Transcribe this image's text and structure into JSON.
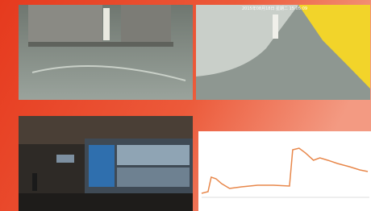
{
  "photos": {
    "top_right_timestamp": "2015年08月18日 星期二 15:05:09"
  },
  "chart_data": {
    "type": "line",
    "x": [
      0,
      8,
      12,
      18,
      25,
      35,
      50,
      70,
      90,
      110,
      114,
      122,
      130,
      140,
      148,
      158,
      170,
      185,
      198,
      208
    ],
    "series": [
      {
        "color": "#e8874a",
        "values": [
          0.57,
          0.8,
          2.86,
          2.63,
          1.94,
          1.26,
          1.49,
          1.71,
          1.71,
          1.6,
          6.74,
          6.97,
          6.29,
          5.26,
          5.6,
          5.26,
          4.8,
          4.34,
          3.89,
          3.66
        ]
      }
    ],
    "xlim": [
      0,
      210
    ],
    "ylim": [
      0,
      8
    ]
  }
}
